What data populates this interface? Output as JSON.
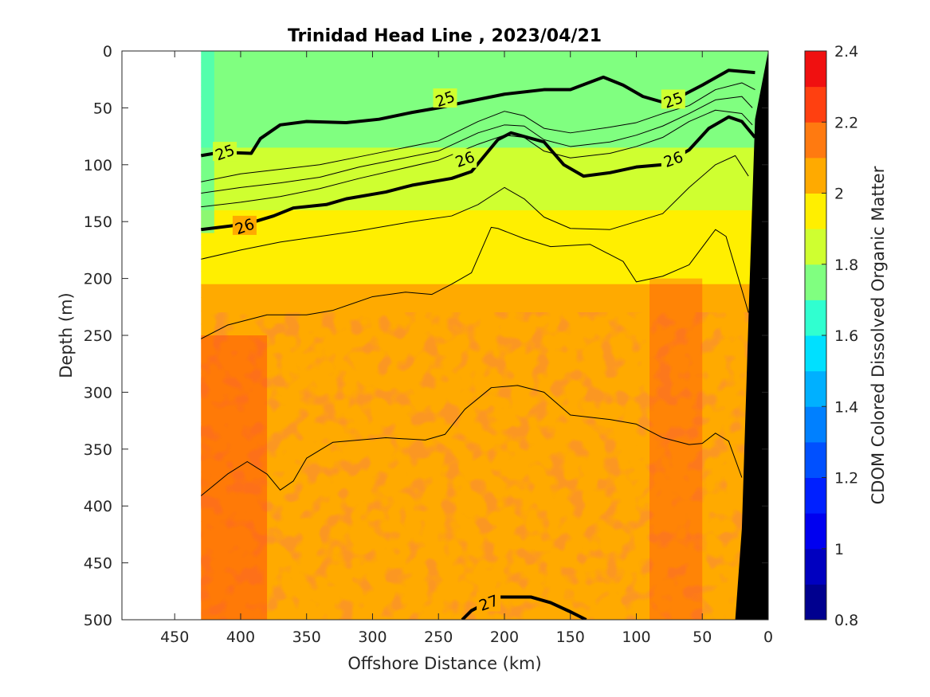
{
  "chart_data": {
    "type": "heatmap",
    "title": "Trinidad Head Line , 2023/04/21",
    "xlabel": "Offshore Distance (km)",
    "ylabel": "Depth (m)",
    "colorbar_label": "CDOM Colored Dissolved Organic Matter",
    "xlim": [
      490,
      0
    ],
    "ylim": [
      500,
      0
    ],
    "x_reversed": true,
    "y_reversed": true,
    "x_ticks": [
      "450",
      "400",
      "350",
      "300",
      "250",
      "200",
      "150",
      "100",
      "50",
      "0"
    ],
    "y_ticks": [
      "0",
      "50",
      "100",
      "150",
      "200",
      "250",
      "300",
      "350",
      "400",
      "450",
      "500"
    ],
    "colorbar_ticks": [
      "0.8",
      "1",
      "1.2",
      "1.4",
      "1.6",
      "1.8",
      "2",
      "2.2",
      "2.4"
    ],
    "color_range": [
      0.8,
      2.4
    ],
    "color_levels": [
      {
        "value": 0.8,
        "color": "#00008f"
      },
      {
        "value": 0.9,
        "color": "#0000c0"
      },
      {
        "value": 1.0,
        "color": "#0000f0"
      },
      {
        "value": 1.1,
        "color": "#0020ff"
      },
      {
        "value": 1.2,
        "color": "#0050ff"
      },
      {
        "value": 1.3,
        "color": "#0080ff"
      },
      {
        "value": 1.4,
        "color": "#00b0ff"
      },
      {
        "value": 1.5,
        "color": "#00e0ff"
      },
      {
        "value": 1.6,
        "color": "#30ffd0"
      },
      {
        "value": 1.7,
        "color": "#80ff80"
      },
      {
        "value": 1.8,
        "color": "#cfff30"
      },
      {
        "value": 1.9,
        "color": "#ffef00"
      },
      {
        "value": 2.0,
        "color": "#ffaa00"
      },
      {
        "value": 2.1,
        "color": "#ff7a10"
      },
      {
        "value": 2.2,
        "color": "#ff4010"
      },
      {
        "value": 2.3,
        "color": "#f01010"
      },
      {
        "value": 2.4,
        "color": "#b00000"
      }
    ],
    "data_extent_km": [
      430,
      0
    ],
    "cdom_profile": [
      {
        "depth": 0,
        "value": 1.75
      },
      {
        "depth": 60,
        "value": 1.75
      },
      {
        "depth": 110,
        "value": 1.85
      },
      {
        "depth": 170,
        "value": 1.95
      },
      {
        "depth": 240,
        "value": 2.05
      },
      {
        "depth": 500,
        "value": 2.05
      }
    ],
    "density_contours": [
      {
        "level": "25",
        "bold": true,
        "points": [
          [
            430,
            92
          ],
          [
            415,
            89
          ],
          [
            392,
            90
          ],
          [
            385,
            77
          ],
          [
            370,
            65
          ],
          [
            350,
            62
          ],
          [
            320,
            63
          ],
          [
            295,
            60
          ],
          [
            270,
            54
          ],
          [
            250,
            50
          ],
          [
            230,
            45
          ],
          [
            200,
            38
          ],
          [
            170,
            34
          ],
          [
            150,
            34
          ],
          [
            125,
            23
          ],
          [
            110,
            30
          ],
          [
            95,
            40
          ],
          [
            80,
            45
          ],
          [
            70,
            42
          ],
          [
            50,
            30
          ],
          [
            30,
            17
          ],
          [
            10,
            19
          ]
        ]
      },
      {
        "level": "",
        "bold": false,
        "points": [
          [
            430,
            115
          ],
          [
            400,
            108
          ],
          [
            370,
            104
          ],
          [
            340,
            100
          ],
          [
            310,
            93
          ],
          [
            280,
            86
          ],
          [
            250,
            79
          ],
          [
            220,
            62
          ],
          [
            200,
            53
          ],
          [
            185,
            57
          ],
          [
            170,
            68
          ],
          [
            150,
            72
          ],
          [
            120,
            67
          ],
          [
            100,
            63
          ],
          [
            80,
            55
          ],
          [
            60,
            48
          ],
          [
            40,
            34
          ],
          [
            20,
            28
          ],
          [
            10,
            34
          ]
        ]
      },
      {
        "level": "",
        "bold": false,
        "points": [
          [
            430,
            125
          ],
          [
            400,
            120
          ],
          [
            370,
            116
          ],
          [
            340,
            111
          ],
          [
            310,
            102
          ],
          [
            280,
            95
          ],
          [
            250,
            88
          ],
          [
            220,
            72
          ],
          [
            200,
            65
          ],
          [
            185,
            66
          ],
          [
            170,
            78
          ],
          [
            150,
            84
          ],
          [
            120,
            80
          ],
          [
            100,
            74
          ],
          [
            80,
            66
          ],
          [
            60,
            55
          ],
          [
            40,
            43
          ],
          [
            20,
            40
          ],
          [
            12,
            50
          ]
        ]
      },
      {
        "level": "",
        "bold": false,
        "points": [
          [
            430,
            137
          ],
          [
            400,
            133
          ],
          [
            370,
            128
          ],
          [
            340,
            121
          ],
          [
            310,
            112
          ],
          [
            280,
            104
          ],
          [
            250,
            96
          ],
          [
            220,
            82
          ],
          [
            200,
            74
          ],
          [
            185,
            76
          ],
          [
            170,
            88
          ],
          [
            150,
            94
          ],
          [
            120,
            90
          ],
          [
            100,
            84
          ],
          [
            80,
            76
          ],
          [
            60,
            62
          ],
          [
            40,
            52
          ],
          [
            20,
            55
          ],
          [
            12,
            65
          ]
        ]
      },
      {
        "level": "26",
        "bold": true,
        "points": [
          [
            430,
            157
          ],
          [
            395,
            152
          ],
          [
            375,
            145
          ],
          [
            360,
            138
          ],
          [
            335,
            135
          ],
          [
            320,
            130
          ],
          [
            290,
            124
          ],
          [
            270,
            118
          ],
          [
            240,
            112
          ],
          [
            225,
            106
          ],
          [
            205,
            78
          ],
          [
            195,
            72
          ],
          [
            170,
            80
          ],
          [
            155,
            100
          ],
          [
            140,
            110
          ],
          [
            120,
            107
          ],
          [
            100,
            102
          ],
          [
            80,
            100
          ],
          [
            60,
            87
          ],
          [
            45,
            68
          ],
          [
            30,
            58
          ],
          [
            20,
            62
          ],
          [
            10,
            76
          ]
        ]
      },
      {
        "level": "",
        "bold": false,
        "points": [
          [
            430,
            183
          ],
          [
            400,
            175
          ],
          [
            370,
            168
          ],
          [
            340,
            163
          ],
          [
            310,
            158
          ],
          [
            270,
            150
          ],
          [
            240,
            145
          ],
          [
            220,
            135
          ],
          [
            200,
            120
          ],
          [
            185,
            130
          ],
          [
            170,
            146
          ],
          [
            150,
            156
          ],
          [
            120,
            157
          ],
          [
            100,
            150
          ],
          [
            80,
            143
          ],
          [
            60,
            120
          ],
          [
            40,
            100
          ],
          [
            25,
            92
          ],
          [
            15,
            110
          ]
        ]
      },
      {
        "level": "",
        "bold": false,
        "points": [
          [
            430,
            253
          ],
          [
            410,
            241
          ],
          [
            380,
            232
          ],
          [
            350,
            232
          ],
          [
            330,
            228
          ],
          [
            300,
            216
          ],
          [
            275,
            212
          ],
          [
            255,
            214
          ],
          [
            240,
            205
          ],
          [
            225,
            195
          ],
          [
            210,
            155
          ],
          [
            205,
            156
          ],
          [
            185,
            165
          ],
          [
            165,
            172
          ],
          [
            135,
            170
          ],
          [
            110,
            185
          ],
          [
            100,
            203
          ],
          [
            80,
            198
          ],
          [
            60,
            188
          ],
          [
            40,
            157
          ],
          [
            32,
            163
          ],
          [
            20,
            210
          ],
          [
            15,
            230
          ]
        ]
      },
      {
        "level": "",
        "bold": false,
        "points": [
          [
            430,
            391
          ],
          [
            410,
            372
          ],
          [
            395,
            361
          ],
          [
            380,
            372
          ],
          [
            370,
            386
          ],
          [
            360,
            378
          ],
          [
            350,
            358
          ],
          [
            330,
            344
          ],
          [
            290,
            340
          ],
          [
            260,
            342
          ],
          [
            245,
            337
          ],
          [
            230,
            315
          ],
          [
            210,
            296
          ],
          [
            190,
            294
          ],
          [
            170,
            300
          ],
          [
            150,
            320
          ],
          [
            120,
            324
          ],
          [
            100,
            328
          ],
          [
            80,
            340
          ],
          [
            60,
            346
          ],
          [
            50,
            345
          ],
          [
            40,
            336
          ],
          [
            30,
            343
          ],
          [
            20,
            375
          ]
        ]
      },
      {
        "level": "27",
        "bold": true,
        "points": [
          [
            232,
            500
          ],
          [
            225,
            492
          ],
          [
            205,
            480
          ],
          [
            180,
            480
          ],
          [
            165,
            485
          ],
          [
            150,
            493
          ],
          [
            138,
            500
          ]
        ]
      }
    ],
    "contour_labels": [
      {
        "text": "25",
        "x": 412,
        "depth": 89
      },
      {
        "text": "25",
        "x": 245,
        "depth": 42
      },
      {
        "text": "25",
        "x": 72,
        "depth": 43
      },
      {
        "text": "26",
        "x": 397,
        "depth": 154
      },
      {
        "text": "26",
        "x": 230,
        "depth": 95
      },
      {
        "text": "26",
        "x": 72,
        "depth": 95
      },
      {
        "text": "27",
        "x": 212,
        "depth": 485
      }
    ],
    "bathymetry": [
      [
        0,
        0
      ],
      [
        0,
        500
      ],
      [
        25,
        500
      ],
      [
        20,
        420
      ],
      [
        14,
        200
      ],
      [
        10,
        60
      ],
      [
        0,
        0
      ]
    ]
  }
}
